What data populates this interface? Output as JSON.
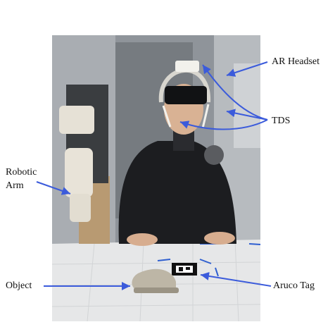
{
  "figure": {
    "labels": {
      "ar_headset": "AR Headset",
      "tds": "TDS",
      "robotic_arm_line1": "Robotic",
      "robotic_arm_line2": "Arm",
      "object": "Object",
      "aruco_tag": "Aruco Tag"
    },
    "photo": {
      "description_icon": "photo-icon"
    },
    "colors": {
      "arrow": "#3b5bdb",
      "text": "#111111",
      "background": "#ffffff"
    }
  }
}
